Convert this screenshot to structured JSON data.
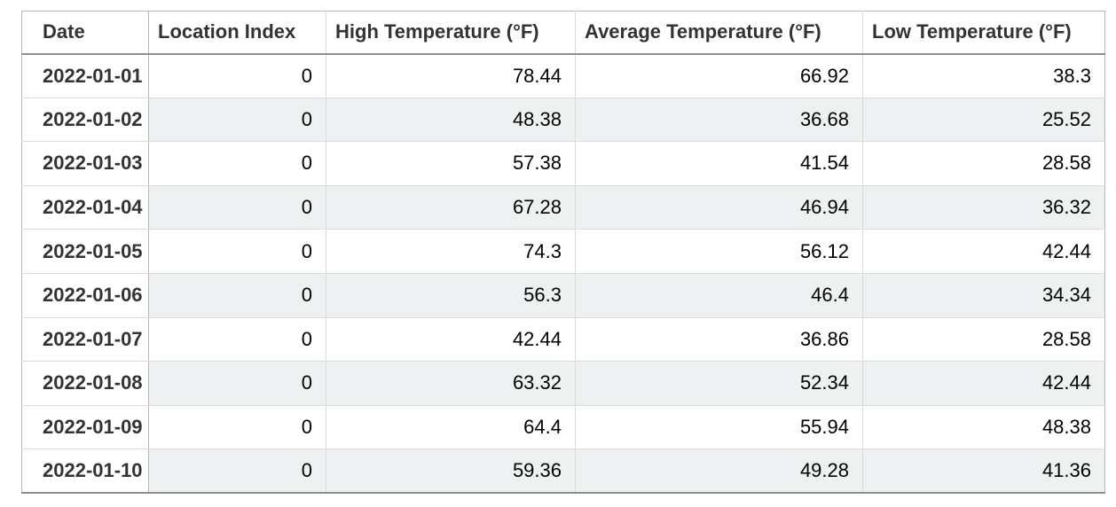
{
  "table": {
    "columns": [
      {
        "label": "Date"
      },
      {
        "label": "Location Index"
      },
      {
        "label": "High Temperature (°F)"
      },
      {
        "label": "Average Temperature (°F)"
      },
      {
        "label": "Low Temperature (°F)"
      }
    ],
    "rows": [
      [
        "2022-01-01",
        "0",
        "78.44",
        "66.92",
        "38.3"
      ],
      [
        "2022-01-02",
        "0",
        "48.38",
        "36.68",
        "25.52"
      ],
      [
        "2022-01-03",
        "0",
        "57.38",
        "41.54",
        "28.58"
      ],
      [
        "2022-01-04",
        "0",
        "67.28",
        "46.94",
        "36.32"
      ],
      [
        "2022-01-05",
        "0",
        "74.3",
        "56.12",
        "42.44"
      ],
      [
        "2022-01-06",
        "0",
        "56.3",
        "46.4",
        "34.34"
      ],
      [
        "2022-01-07",
        "0",
        "42.44",
        "36.86",
        "28.58"
      ],
      [
        "2022-01-08",
        "0",
        "63.32",
        "52.34",
        "42.44"
      ],
      [
        "2022-01-09",
        "0",
        "64.4",
        "55.94",
        "48.38"
      ],
      [
        "2022-01-10",
        "0",
        "59.36",
        "49.28",
        "41.36"
      ]
    ],
    "colors": {
      "stripe": "#eef1f1",
      "header_text": "#333333",
      "date_text": "#333333",
      "value_text": "#000000",
      "outer_border": "#b7b7b7",
      "inner_border": "#dcdcdc",
      "header_rule": "#8e8e8e",
      "page_bg": "#ffffff"
    }
  }
}
